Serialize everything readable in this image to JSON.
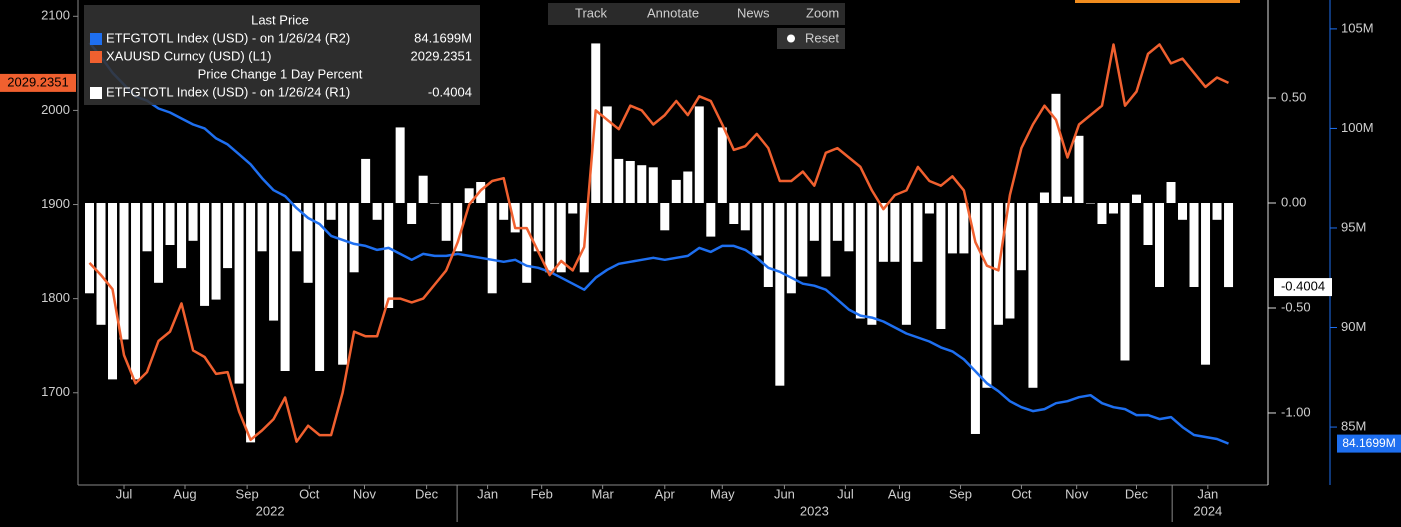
{
  "toolbar": {
    "items": [
      "Track",
      "Annotate",
      "News",
      "Zoom"
    ],
    "reset": "Reset"
  },
  "chart_data": {
    "type": "combo",
    "legend_groups": [
      "Last Price",
      "Price Change 1 Day Percent"
    ],
    "xlim": [
      -1,
      101.3
    ],
    "xticks": [
      {
        "value": 3.0,
        "label": "Jul"
      },
      {
        "value": 8.3,
        "label": "Aug"
      },
      {
        "value": 13.7,
        "label": "Sep"
      },
      {
        "value": 19.1,
        "label": "Oct"
      },
      {
        "value": 23.9,
        "label": "Nov"
      },
      {
        "value": 29.3,
        "label": "Dec"
      },
      {
        "value": 34.6,
        "label": "Jan"
      },
      {
        "value": 39.3,
        "label": "Feb"
      },
      {
        "value": 44.6,
        "label": "Mar"
      },
      {
        "value": 50.0,
        "label": "Apr"
      },
      {
        "value": 55.0,
        "label": "May"
      },
      {
        "value": 60.4,
        "label": "Jun"
      },
      {
        "value": 65.7,
        "label": "Jul"
      },
      {
        "value": 70.4,
        "label": "Aug"
      },
      {
        "value": 75.7,
        "label": "Sep"
      },
      {
        "value": 81.0,
        "label": "Oct"
      },
      {
        "value": 85.8,
        "label": "Nov"
      },
      {
        "value": 91.0,
        "label": "Dec"
      },
      {
        "value": 97.2,
        "label": "Jan"
      }
    ],
    "year_ticks": [
      {
        "value": 15.7,
        "label": "2022"
      },
      {
        "value": 63.0,
        "label": "2023"
      },
      {
        "value": 97.2,
        "label": "2024"
      }
    ],
    "ylim": [
      1602,
      2112
    ],
    "yticks": [
      1700,
      1800,
      1900,
      2000,
      2100
    ],
    "y2lim": [
      -1.343,
      0.943
    ],
    "y2ticks": [
      {
        "value": 0.5,
        "label": "0.50"
      },
      {
        "value": 0,
        "label": "0.00"
      },
      {
        "value": -0.5,
        "label": "-0.50"
      },
      {
        "value": -1,
        "label": "-1.00"
      }
    ],
    "y3lim": [
      82.09,
      106.2
    ],
    "y3ticks": [
      {
        "value": 85,
        "label": "85M"
      },
      {
        "value": 90,
        "label": "90M"
      },
      {
        "value": 95,
        "label": "95M"
      },
      {
        "value": 100,
        "label": "100M"
      },
      {
        "value": 105,
        "label": "105M"
      }
    ],
    "series": [
      {
        "name": "ETFGTOTL Index (USD) - on 1/26/24 (R2)",
        "type": "line",
        "axis": "y3",
        "color": "#1e6ff0",
        "group": 0,
        "last_label": "84.1699M",
        "values": [
          104.3,
          103.6,
          102.8,
          102.2,
          101.6,
          101.4,
          101.0,
          100.8,
          100.5,
          100.2,
          100.0,
          99.5,
          99.2,
          98.7,
          98.2,
          97.5,
          96.9,
          96.6,
          96.0,
          95.5,
          95.2,
          94.6,
          94.4,
          94.2,
          94.1,
          93.9,
          94.0,
          93.7,
          93.4,
          93.7,
          93.6,
          93.6,
          93.7,
          93.6,
          93.5,
          93.4,
          93.3,
          93.4,
          93.1,
          93.0,
          92.8,
          92.5,
          92.2,
          91.9,
          92.5,
          92.9,
          93.2,
          93.3,
          93.4,
          93.5,
          93.4,
          93.5,
          93.6,
          94.0,
          93.8,
          94.1,
          94.1,
          93.9,
          93.5,
          93.0,
          92.8,
          92.5,
          92.2,
          92.1,
          91.9,
          91.4,
          90.9,
          90.6,
          90.5,
          90.3,
          90.0,
          89.7,
          89.5,
          89.3,
          89.0,
          88.8,
          88.4,
          87.8,
          87.2,
          86.8,
          86.3,
          86.0,
          85.8,
          85.9,
          86.2,
          86.3,
          86.5,
          86.6,
          86.2,
          86.0,
          85.9,
          85.6,
          85.6,
          85.4,
          85.5,
          85.0,
          84.6,
          84.5,
          84.4,
          84.1699
        ]
      },
      {
        "name": "XAUUSD Curncy (USD) (L1)",
        "type": "line",
        "axis": "y",
        "color": "#f0602f",
        "group": 0,
        "values": [
          1838,
          1825,
          1810,
          1740,
          1710,
          1722,
          1755,
          1765,
          1795,
          1745,
          1738,
          1720,
          1722,
          1680,
          1650,
          1660,
          1672,
          1695,
          1648,
          1665,
          1655,
          1655,
          1700,
          1765,
          1760,
          1760,
          1800,
          1800,
          1796,
          1800,
          1815,
          1830,
          1860,
          1900,
          1915,
          1925,
          1928,
          1875,
          1875,
          1850,
          1825,
          1840,
          1830,
          1855,
          2000,
          1990,
          1980,
          2005,
          2000,
          1985,
          1995,
          2010,
          1995,
          2015,
          2010,
          1985,
          1958,
          1962,
          1975,
          1960,
          1925,
          1925,
          1935,
          1920,
          1955,
          1960,
          1950,
          1940,
          1915,
          1895,
          1910,
          1915,
          1940,
          1925,
          1920,
          1930,
          1915,
          1860,
          1835,
          1830,
          1910,
          1960,
          1985,
          2005,
          1990,
          1950,
          1985,
          1995,
          2005,
          2070,
          2005,
          2020,
          2060,
          2070,
          2050,
          2055,
          2040,
          2025,
          2035,
          2029.2351
        ]
      },
      {
        "name": "ETFGTOTL Index (USD) - on 1/26/24 (R1)",
        "type": "bar",
        "axis": "y2",
        "color": "#ffffff",
        "group": 1,
        "values": [
          -0.43,
          -0.58,
          -0.84,
          -0.65,
          -0.84,
          -0.23,
          -0.38,
          -0.2,
          -0.31,
          -0.18,
          -0.49,
          -0.46,
          -0.31,
          -0.86,
          -1.14,
          -0.23,
          -0.56,
          -0.8,
          -0.23,
          -0.38,
          -0.8,
          -0.08,
          -0.77,
          -0.33,
          0.21,
          -0.08,
          -0.5,
          0.36,
          -0.1,
          0.13,
          0,
          -0.18,
          -0.23,
          0.07,
          0.1,
          -0.43,
          -0.08,
          -0.14,
          -0.38,
          -0.23,
          -0.33,
          -0.33,
          -0.05,
          -0.33,
          0.76,
          0.46,
          0.21,
          0.2,
          0.18,
          0.17,
          -0.13,
          0.11,
          0.15,
          0.46,
          -0.16,
          0.36,
          -0.1,
          -0.13,
          -0.25,
          -0.4,
          -0.87,
          -0.43,
          -0.35,
          -0.18,
          -0.35,
          -0.18,
          -0.23,
          -0.55,
          -0.58,
          -0.28,
          -0.28,
          -0.58,
          -0.28,
          -0.05,
          -0.6,
          -0.24,
          -0.24,
          -1.1,
          -0.88,
          -0.58,
          -0.55,
          -0.32,
          -0.88,
          0.05,
          0.52,
          0.03,
          0.32,
          0,
          -0.1,
          -0.05,
          -0.75,
          0.04,
          -0.2,
          -0.4,
          0.1,
          -0.08,
          -0.4,
          -0.77,
          -0.08,
          -0.4004
        ]
      }
    ]
  }
}
